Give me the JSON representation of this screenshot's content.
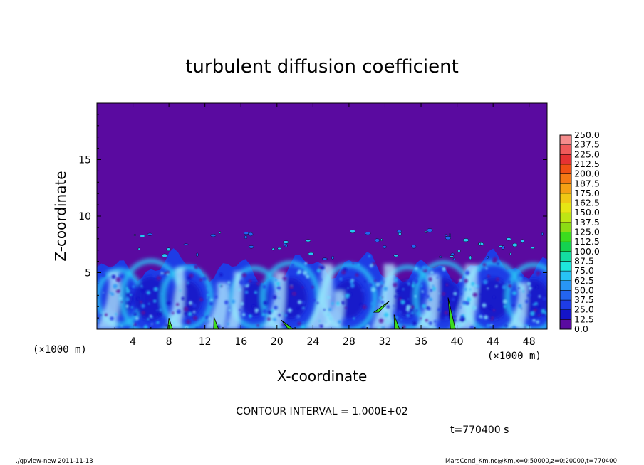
{
  "chart_data": {
    "type": "heatmap",
    "title": "turbulent diffusion coefficient",
    "xlabel": "X-coordinate",
    "ylabel": "Z-coordinate",
    "x_unit_label": "(×1000 m)",
    "y_unit_label": "(×1000 m)",
    "xlim": [
      0,
      50
    ],
    "ylim": [
      0,
      20
    ],
    "x_ticks": [
      4,
      8,
      12,
      16,
      20,
      24,
      28,
      32,
      36,
      40,
      44,
      48
    ],
    "y_ticks": [
      5,
      10,
      15
    ],
    "colorbar": {
      "levels": [
        "0.0",
        "12.5",
        "25.0",
        "37.5",
        "50.0",
        "62.5",
        "75.0",
        "87.5",
        "100.0",
        "112.5",
        "125.0",
        "137.5",
        "150.0",
        "162.5",
        "175.0",
        "187.5",
        "200.0",
        "212.5",
        "225.0",
        "237.5",
        "250.0"
      ],
      "colors": [
        "#5a0aa0",
        "#1414c8",
        "#1e3ce6",
        "#2364f0",
        "#2896f5",
        "#28c3f5",
        "#1ee6dc",
        "#14dca0",
        "#14d250",
        "#3cdc1e",
        "#8cdc14",
        "#bee614",
        "#e6e614",
        "#f0c814",
        "#f5a014",
        "#f57814",
        "#f05014",
        "#e63232",
        "#f05a5a",
        "#f58c8c"
      ]
    },
    "background_value": "0.0",
    "boundary_layer_top_km": 6,
    "contour_interval_text": "CONTOUR INTERVAL = 1.000E+02",
    "time_text": "t=770400 s"
  },
  "footer": {
    "left": "./gpview-new  2011-11-13",
    "right": "MarsCond_Km.nc@Km,x=0:50000,z=0:20000,t=770400"
  },
  "colors": {
    "background_fill": "#5a0aa0",
    "frame": "#000000"
  }
}
